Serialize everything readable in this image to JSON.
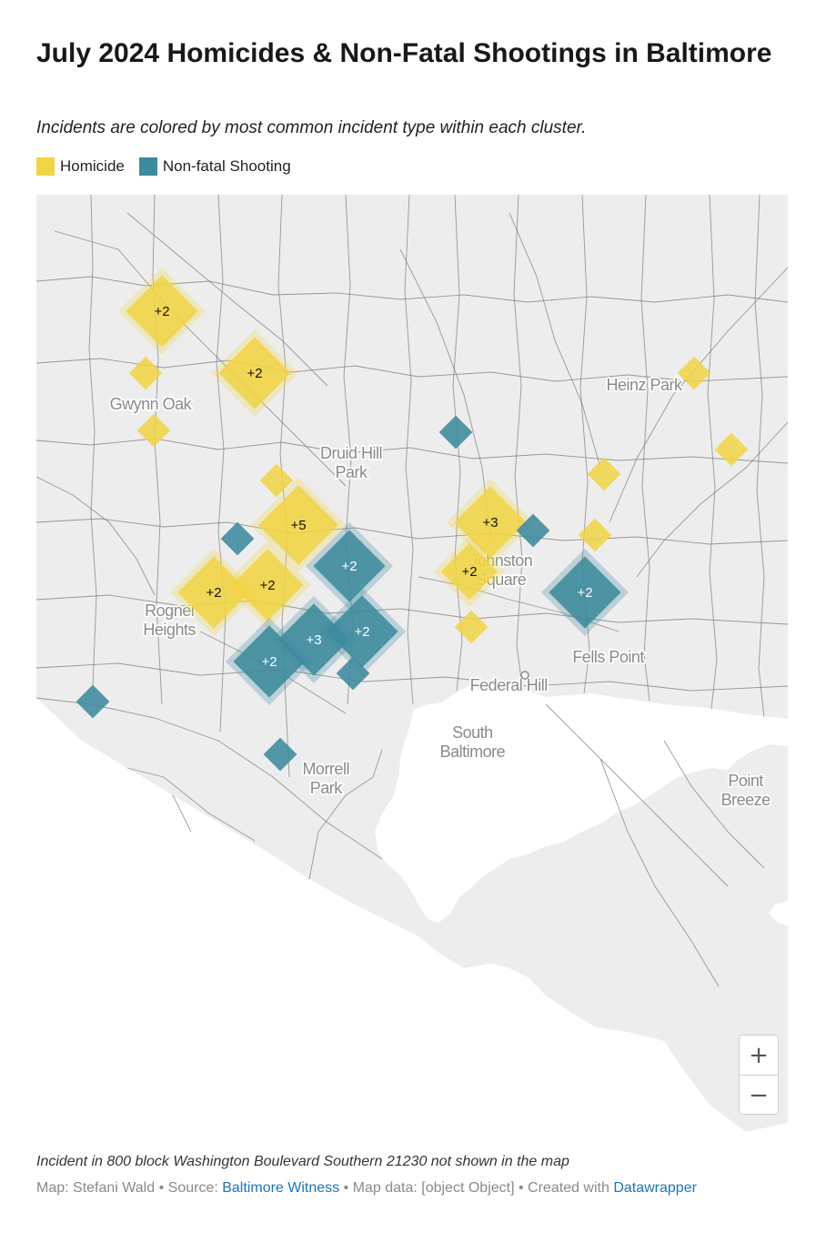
{
  "title": "July 2024 Homicides & Non-Fatal Shootings in Baltimore",
  "subtitle": "Incidents are colored by most common incident type within each cluster.",
  "legend": {
    "items": [
      {
        "label": "Homicide",
        "color": "#f0d443"
      },
      {
        "label": "Non-fatal Shooting",
        "color": "#3c8a9d"
      }
    ]
  },
  "colors": {
    "homicide": "#f0d443",
    "non_fatal": "#3c8a9d",
    "land": "#ededed",
    "water": "#ffffff",
    "boundary": "#7a7a7a",
    "place_label": "#8a8a8a",
    "link": "#1a76b8"
  },
  "map": {
    "places": [
      {
        "label": "Gwynn Oak"
      },
      {
        "label": "Druid Hill Park"
      },
      {
        "label": "Heinz Park"
      },
      {
        "label": "Johnston Square"
      },
      {
        "label": "Rognel Heights"
      },
      {
        "label": "Fells Point"
      },
      {
        "label": "Federal Hill"
      },
      {
        "label": "South Baltimore"
      },
      {
        "label": "Morrell Park"
      },
      {
        "label": "Point Breeze"
      }
    ],
    "clusters": [
      {
        "type": "Homicide",
        "count_label": "+2"
      },
      {
        "type": "Homicide",
        "count_label": "+2"
      },
      {
        "type": "Homicide",
        "count_label": ""
      },
      {
        "type": "Homicide",
        "count_label": ""
      },
      {
        "type": "Homicide",
        "count_label": ""
      },
      {
        "type": "Homicide",
        "count_label": "+5"
      },
      {
        "type": "Homicide",
        "count_label": "+2"
      },
      {
        "type": "Homicide",
        "count_label": "+2"
      },
      {
        "type": "Homicide",
        "count_label": "+3"
      },
      {
        "type": "Homicide",
        "count_label": "+2"
      },
      {
        "type": "Homicide",
        "count_label": ""
      },
      {
        "type": "Homicide",
        "count_label": ""
      },
      {
        "type": "Homicide",
        "count_label": ""
      },
      {
        "type": "Homicide",
        "count_label": ""
      },
      {
        "type": "Homicide",
        "count_label": ""
      },
      {
        "type": "Non-fatal Shooting",
        "count_label": ""
      },
      {
        "type": "Non-fatal Shooting",
        "count_label": ""
      },
      {
        "type": "Non-fatal Shooting",
        "count_label": "+2"
      },
      {
        "type": "Non-fatal Shooting",
        "count_label": "+3"
      },
      {
        "type": "Non-fatal Shooting",
        "count_label": "+2"
      },
      {
        "type": "Non-fatal Shooting",
        "count_label": "+2"
      },
      {
        "type": "Non-fatal Shooting",
        "count_label": ""
      },
      {
        "type": "Non-fatal Shooting",
        "count_label": ""
      },
      {
        "type": "Non-fatal Shooting",
        "count_label": "+2"
      },
      {
        "type": "Non-fatal Shooting",
        "count_label": ""
      },
      {
        "type": "Non-fatal Shooting",
        "count_label": ""
      }
    ]
  },
  "zoom": {
    "in_label": "+",
    "out_label": "−"
  },
  "notes": "Incident in 800 block Washington Boulevard Southern 21230 not shown in the map",
  "footer": {
    "map_prefix": "Map: Stefani Wald",
    "source_prefix": "• Source:",
    "source_link": "Baltimore Witness",
    "mapdata": "• Map data: [object Object]",
    "created_prefix": "• Created with",
    "created_link": "Datawrapper"
  }
}
